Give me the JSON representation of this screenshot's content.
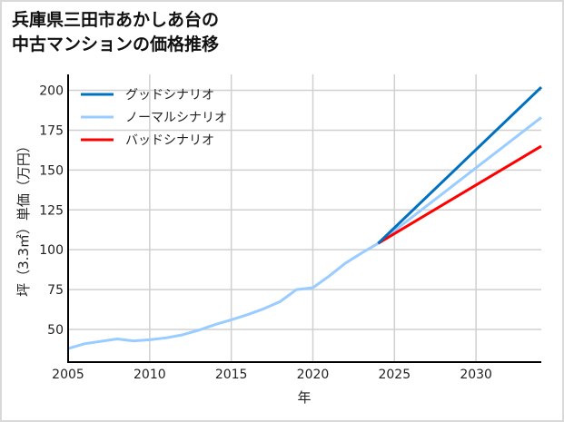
{
  "chart_data": {
    "type": "line",
    "title_line1": "兵庫県三田市あかしあ台の",
    "title_line2": "中古マンションの価格推移",
    "xlabel": "年",
    "ylabel": "坪（3.3㎡）単価（万円）",
    "xlim": [
      2005,
      2034
    ],
    "ylim": [
      29.5,
      210
    ],
    "xticks": [
      2005,
      2010,
      2015,
      2020,
      2025,
      2030
    ],
    "yticks": [
      50,
      75,
      100,
      125,
      150,
      175,
      200
    ],
    "grid": true,
    "legend_position": "top-left",
    "series": [
      {
        "name": "グッドシナリオ",
        "color": "#0070c0",
        "x": [
          2024,
          2034
        ],
        "y": [
          104,
          202
        ]
      },
      {
        "name": "ノーマルシナリオ",
        "color": "#99ccff",
        "x": [
          2005,
          2006,
          2007,
          2008,
          2009,
          2010,
          2011,
          2012,
          2013,
          2014,
          2015,
          2016,
          2017,
          2018,
          2019,
          2020,
          2021,
          2022,
          2023,
          2024,
          2034
        ],
        "y": [
          38,
          41,
          42.5,
          44,
          42.8,
          43.5,
          44.7,
          46.6,
          49.5,
          53,
          56,
          59.3,
          63,
          67.5,
          75,
          76.2,
          83.5,
          91.6,
          98,
          104,
          183
        ]
      },
      {
        "name": "バッドシナリオ",
        "color": "#ff0000",
        "x": [
          2024,
          2034
        ],
        "y": [
          104,
          165
        ]
      }
    ]
  }
}
